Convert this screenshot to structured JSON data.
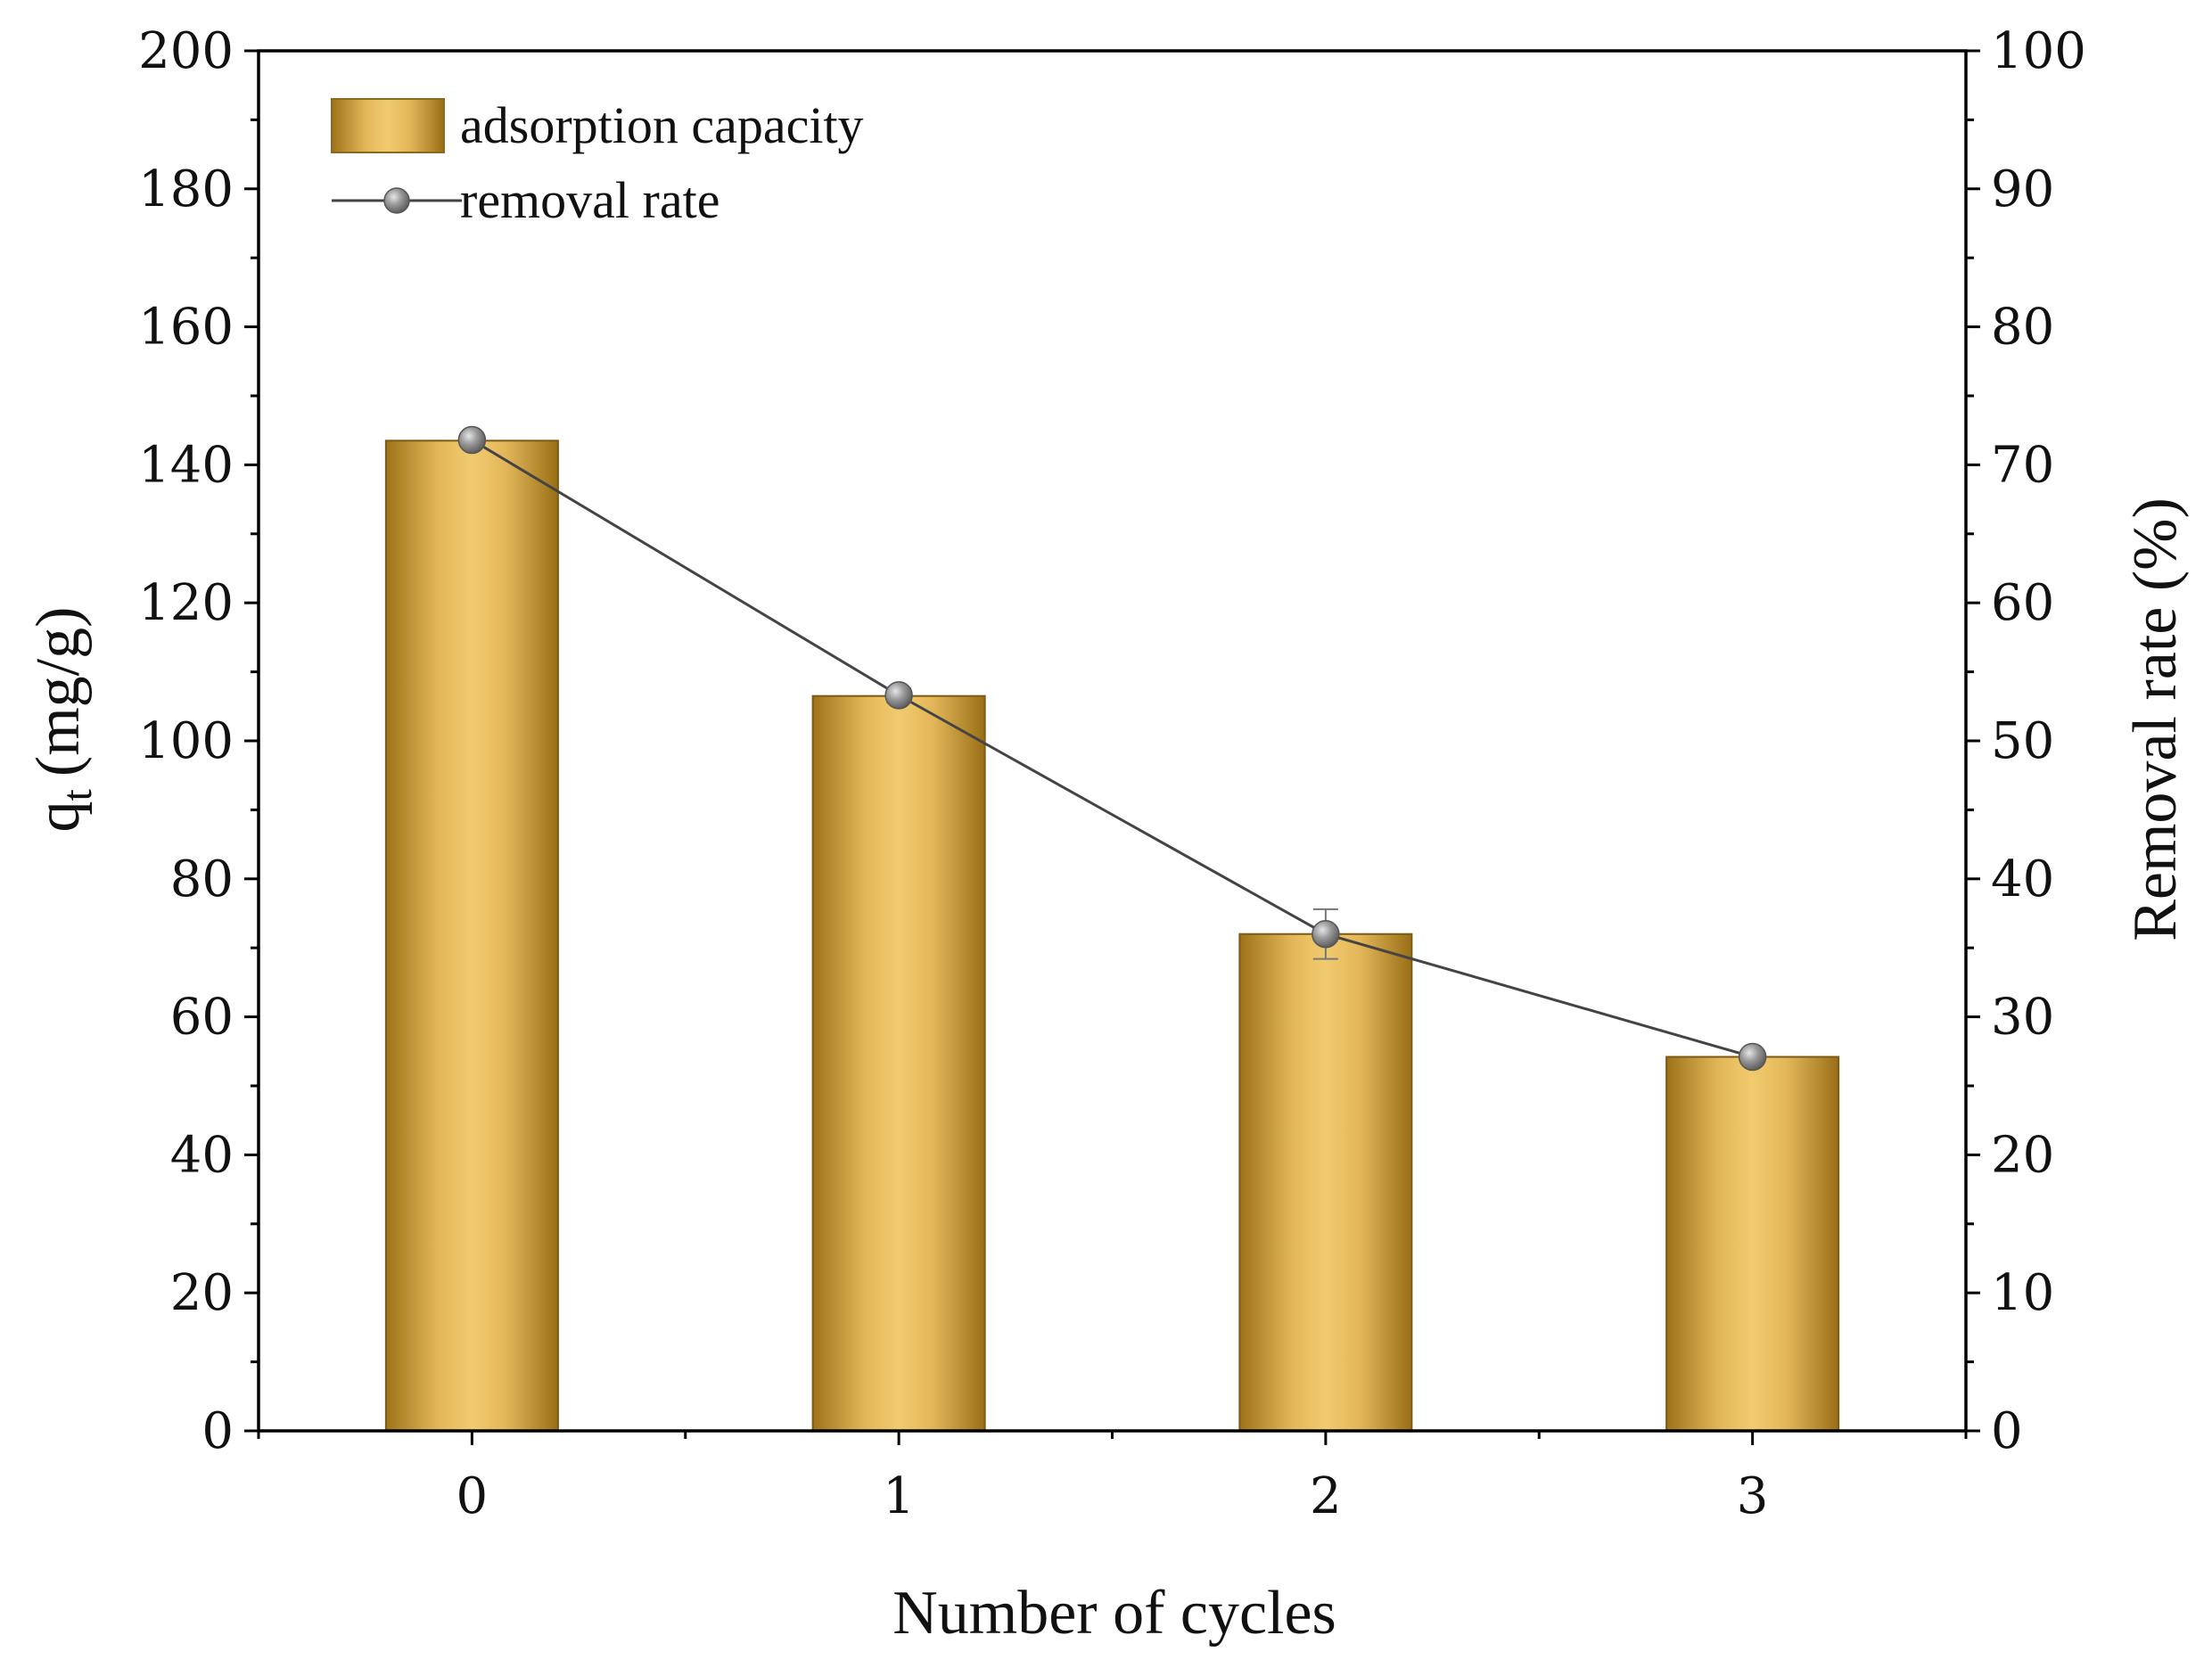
{
  "chart_data": {
    "type": "bar+line",
    "categories": [
      "0",
      "1",
      "2",
      "3"
    ],
    "xlabel": "Number of cycles",
    "ylabel_main": "q",
    "ylabel_sub": "t",
    "ylabel_unit": "(mg/g)",
    "y2label": "Removal rate (%)",
    "ylim": [
      0,
      200
    ],
    "y2lim": [
      0,
      100
    ],
    "yticks": [
      "0",
      "20",
      "40",
      "60",
      "80",
      "100",
      "120",
      "140",
      "160",
      "180",
      "200"
    ],
    "y2ticks": [
      "0",
      "10",
      "20",
      "30",
      "40",
      "50",
      "60",
      "70",
      "80",
      "90",
      "100"
    ],
    "series": [
      {
        "name": "adsorption capacity",
        "type": "bar",
        "axis": "left",
        "values": [
          143.5,
          106.5,
          72,
          54.2
        ]
      },
      {
        "name": "removal rate",
        "type": "line",
        "axis": "right",
        "values": [
          71.8,
          53.3,
          36,
          27.1
        ],
        "errors": [
          0.4,
          0.5,
          1.8,
          0.4
        ]
      }
    ],
    "legend_position": "top-left"
  },
  "colors": {
    "bar_dark": "#a67a1e",
    "bar_light": "#f0c96c",
    "line": "#444444",
    "marker": "#8c8c8c",
    "axis": "#000000"
  }
}
